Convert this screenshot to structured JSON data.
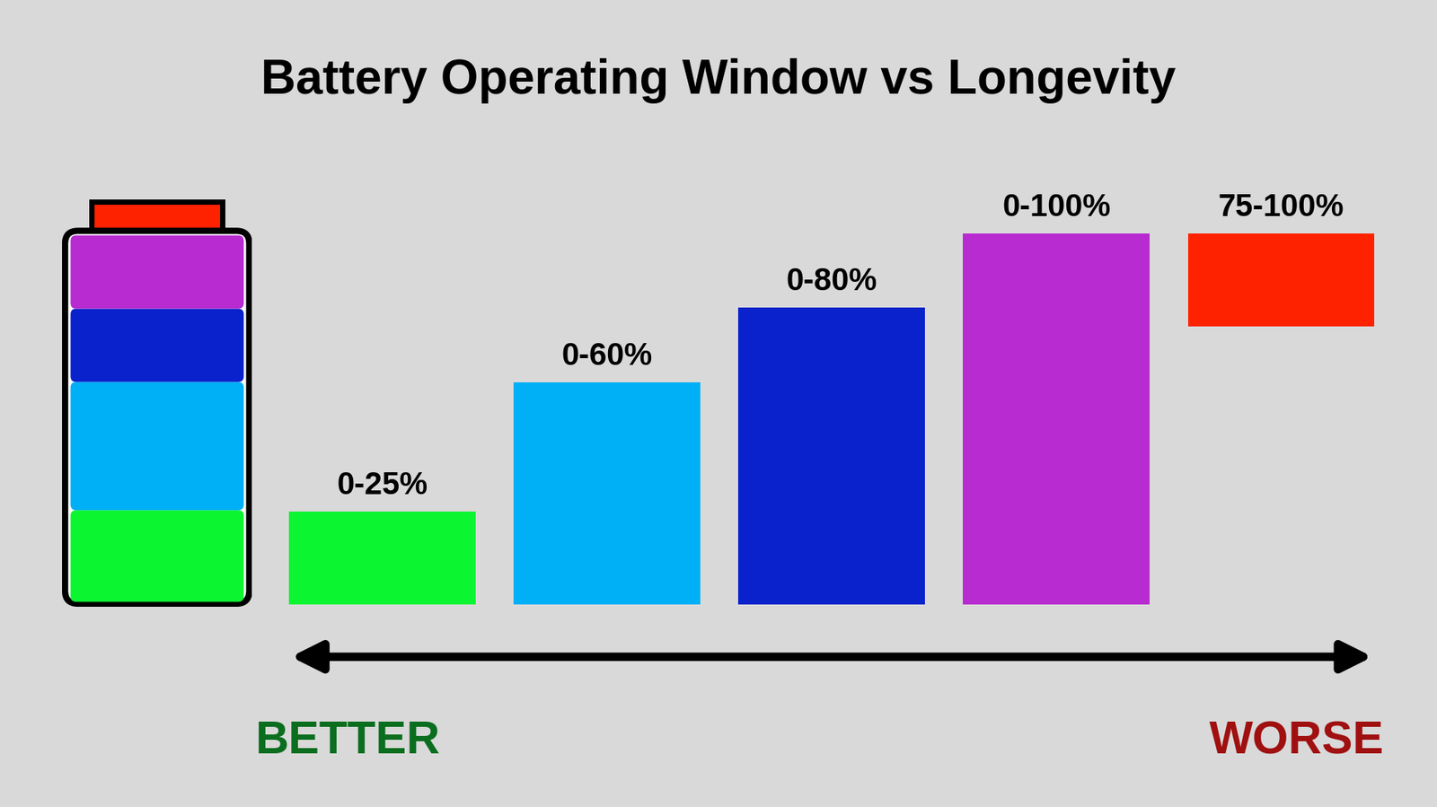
{
  "chart_data": {
    "type": "bar",
    "title": "Battery Operating Window vs Longevity",
    "categories": [
      "0-25%",
      "0-60%",
      "0-80%",
      "0-100%",
      "75-100%"
    ],
    "values": [
      25,
      60,
      80,
      100,
      100
    ],
    "base": [
      0,
      0,
      0,
      0,
      75
    ],
    "colors": [
      "#0cf531",
      "#00b0f6",
      "#0a22cc",
      "#b72bd0",
      "#ff2200"
    ],
    "ylim": [
      0,
      100
    ],
    "tick_labels": false,
    "annotations": [
      {
        "text": "BETTER",
        "color": "#0b6e1f"
      },
      {
        "text": "WORSE",
        "color": "#a01010"
      }
    ]
  }
}
